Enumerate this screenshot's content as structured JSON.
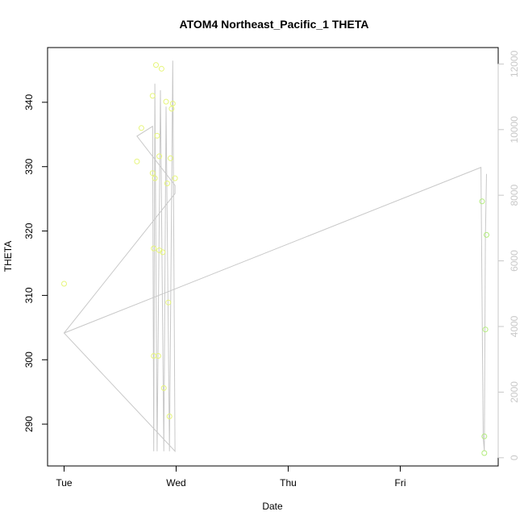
{
  "chart_data": {
    "type": "scatter",
    "title": "ATOM4 Northeast_Pacific_1 THETA",
    "xlabel": "Date",
    "ylabel": "THETA",
    "x_ticks": [
      "Tue",
      "Wed",
      "Thu",
      "Fri"
    ],
    "xlim": [
      0,
      4.19
    ],
    "ylim": [
      283.5,
      348.5
    ],
    "y_ticks": [
      290,
      300,
      310,
      320,
      330,
      340
    ],
    "y2lim": [
      -250,
      12500
    ],
    "y2_ticks": [
      0,
      2000,
      4000,
      6000,
      8000,
      10000,
      12000
    ],
    "grid": false,
    "series": [
      {
        "role": "points",
        "axis": "left",
        "marker": "open-circle",
        "points": [
          {
            "x": 0.0,
            "y": 311.8,
            "color": "#e6f57a"
          },
          {
            "x": 0.65,
            "y": 330.8,
            "color": "#e6f57a"
          },
          {
            "x": 0.69,
            "y": 336.0,
            "color": "#e6f57a"
          },
          {
            "x": 0.79,
            "y": 341.0,
            "color": "#e6f57a"
          },
          {
            "x": 0.79,
            "y": 329.0,
            "color": "#e6f57a"
          },
          {
            "x": 0.8,
            "y": 317.3,
            "color": "#e6f57a"
          },
          {
            "x": 0.8,
            "y": 300.6,
            "color": "#e6f57a"
          },
          {
            "x": 0.81,
            "y": 328.2,
            "color": "#e6f57a"
          },
          {
            "x": 0.82,
            "y": 345.8,
            "color": "#e6f57a"
          },
          {
            "x": 0.83,
            "y": 334.8,
            "color": "#e6f57a"
          },
          {
            "x": 0.84,
            "y": 300.6,
            "color": "#e6f57a"
          },
          {
            "x": 0.85,
            "y": 317.0,
            "color": "#e6f57a"
          },
          {
            "x": 0.85,
            "y": 331.6,
            "color": "#e6f57a"
          },
          {
            "x": 0.87,
            "y": 345.2,
            "color": "#e6f57a"
          },
          {
            "x": 0.88,
            "y": 316.7,
            "color": "#e6f57a"
          },
          {
            "x": 0.89,
            "y": 295.6,
            "color": "#e6f57a"
          },
          {
            "x": 0.91,
            "y": 340.1,
            "color": "#e6f57a"
          },
          {
            "x": 0.92,
            "y": 327.4,
            "color": "#e6f57a"
          },
          {
            "x": 0.93,
            "y": 308.9,
            "color": "#e6f57a"
          },
          {
            "x": 0.94,
            "y": 291.2,
            "color": "#e6f57a"
          },
          {
            "x": 0.95,
            "y": 331.3,
            "color": "#e6f57a"
          },
          {
            "x": 0.96,
            "y": 339.0,
            "color": "#e6f57a"
          },
          {
            "x": 0.97,
            "y": 339.8,
            "color": "#e6f57a"
          },
          {
            "x": 0.99,
            "y": 328.2,
            "color": "#e6f57a"
          },
          {
            "x": 3.73,
            "y": 324.6,
            "color": "#b2ec7c"
          },
          {
            "x": 3.75,
            "y": 288.1,
            "color": "#b2ec7c"
          },
          {
            "x": 3.75,
            "y": 285.5,
            "color": "#b2ec7c"
          },
          {
            "x": 3.76,
            "y": 304.7,
            "color": "#b2ec7c"
          },
          {
            "x": 3.77,
            "y": 319.4,
            "color": "#b2ec7c"
          }
        ]
      },
      {
        "role": "depth-trace",
        "axis": "right",
        "color": "#c8c8c8",
        "points": [
          [
            0.0,
            3800
          ],
          [
            0.99,
            8050
          ],
          [
            0.99,
            8300
          ],
          [
            0.65,
            9800
          ],
          [
            0.79,
            10100
          ],
          [
            0.8,
            200
          ],
          [
            0.81,
            11400
          ],
          [
            0.83,
            200
          ],
          [
            0.86,
            11200
          ],
          [
            0.89,
            200
          ],
          [
            0.91,
            10700
          ],
          [
            0.94,
            200
          ],
          [
            0.97,
            12100
          ],
          [
            0.99,
            200
          ],
          [
            0.0,
            3800
          ],
          [
            3.72,
            8850
          ],
          [
            3.74,
            600
          ],
          [
            3.75,
            200
          ],
          [
            3.76,
            6700
          ],
          [
            3.77,
            8650
          ]
        ]
      }
    ]
  }
}
